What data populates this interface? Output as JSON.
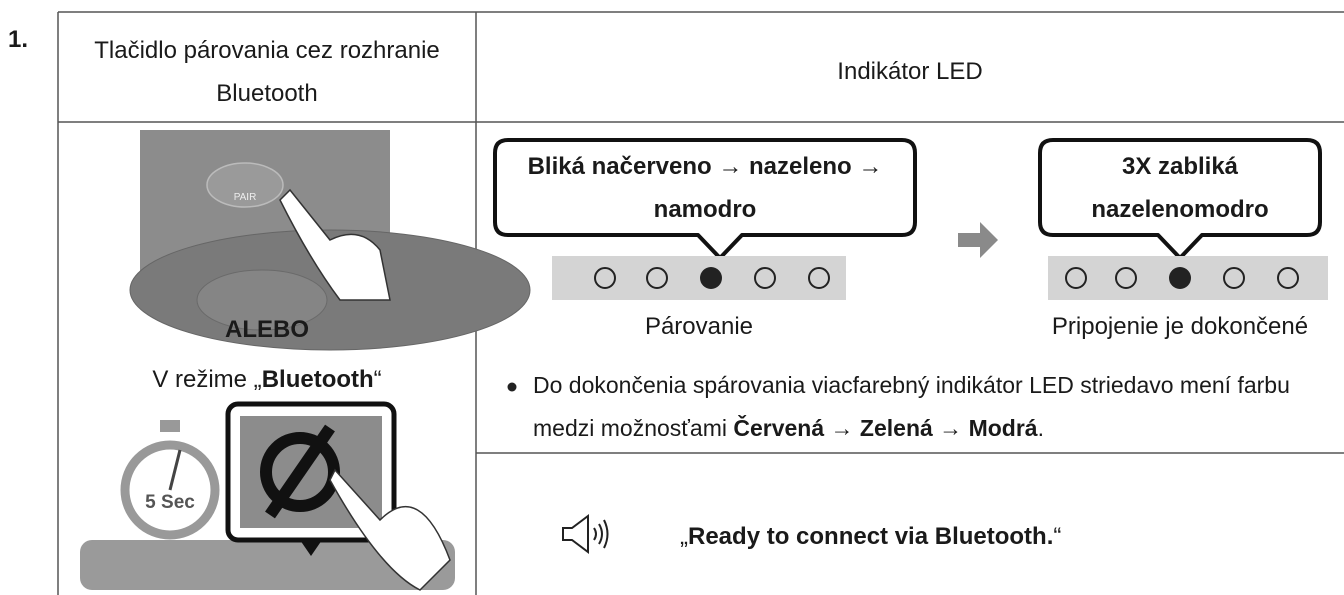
{
  "step": "1.",
  "table": {
    "headers": [
      "Tlačidlo párovania cez rozhranie Bluetooth",
      "Indikátor LED"
    ]
  },
  "left": {
    "illustration_labels": [
      "PAIR",
      "5 Sec"
    ],
    "or": "ALEBO",
    "mode": [
      "V režime „",
      "Bluetooth",
      "“"
    ]
  },
  "right": {
    "steps": [
      {
        "callout": "Bliká načerveno → nazeleno → namodro",
        "label": "Párovanie"
      },
      {
        "callout": "3X zabliká nazelenomodro",
        "label": "Pripojenie je dokončené"
      }
    ],
    "note": [
      "Do dokončenia spárovania viacfarebný indikátor LED striedavo mení farbu medzi možnosťami ",
      "Červená",
      " → ",
      "Zelená",
      " → ",
      "Modrá",
      "."
    ],
    "voice": [
      "„",
      "Ready to connect via Bluetooth.",
      "“"
    ]
  }
}
